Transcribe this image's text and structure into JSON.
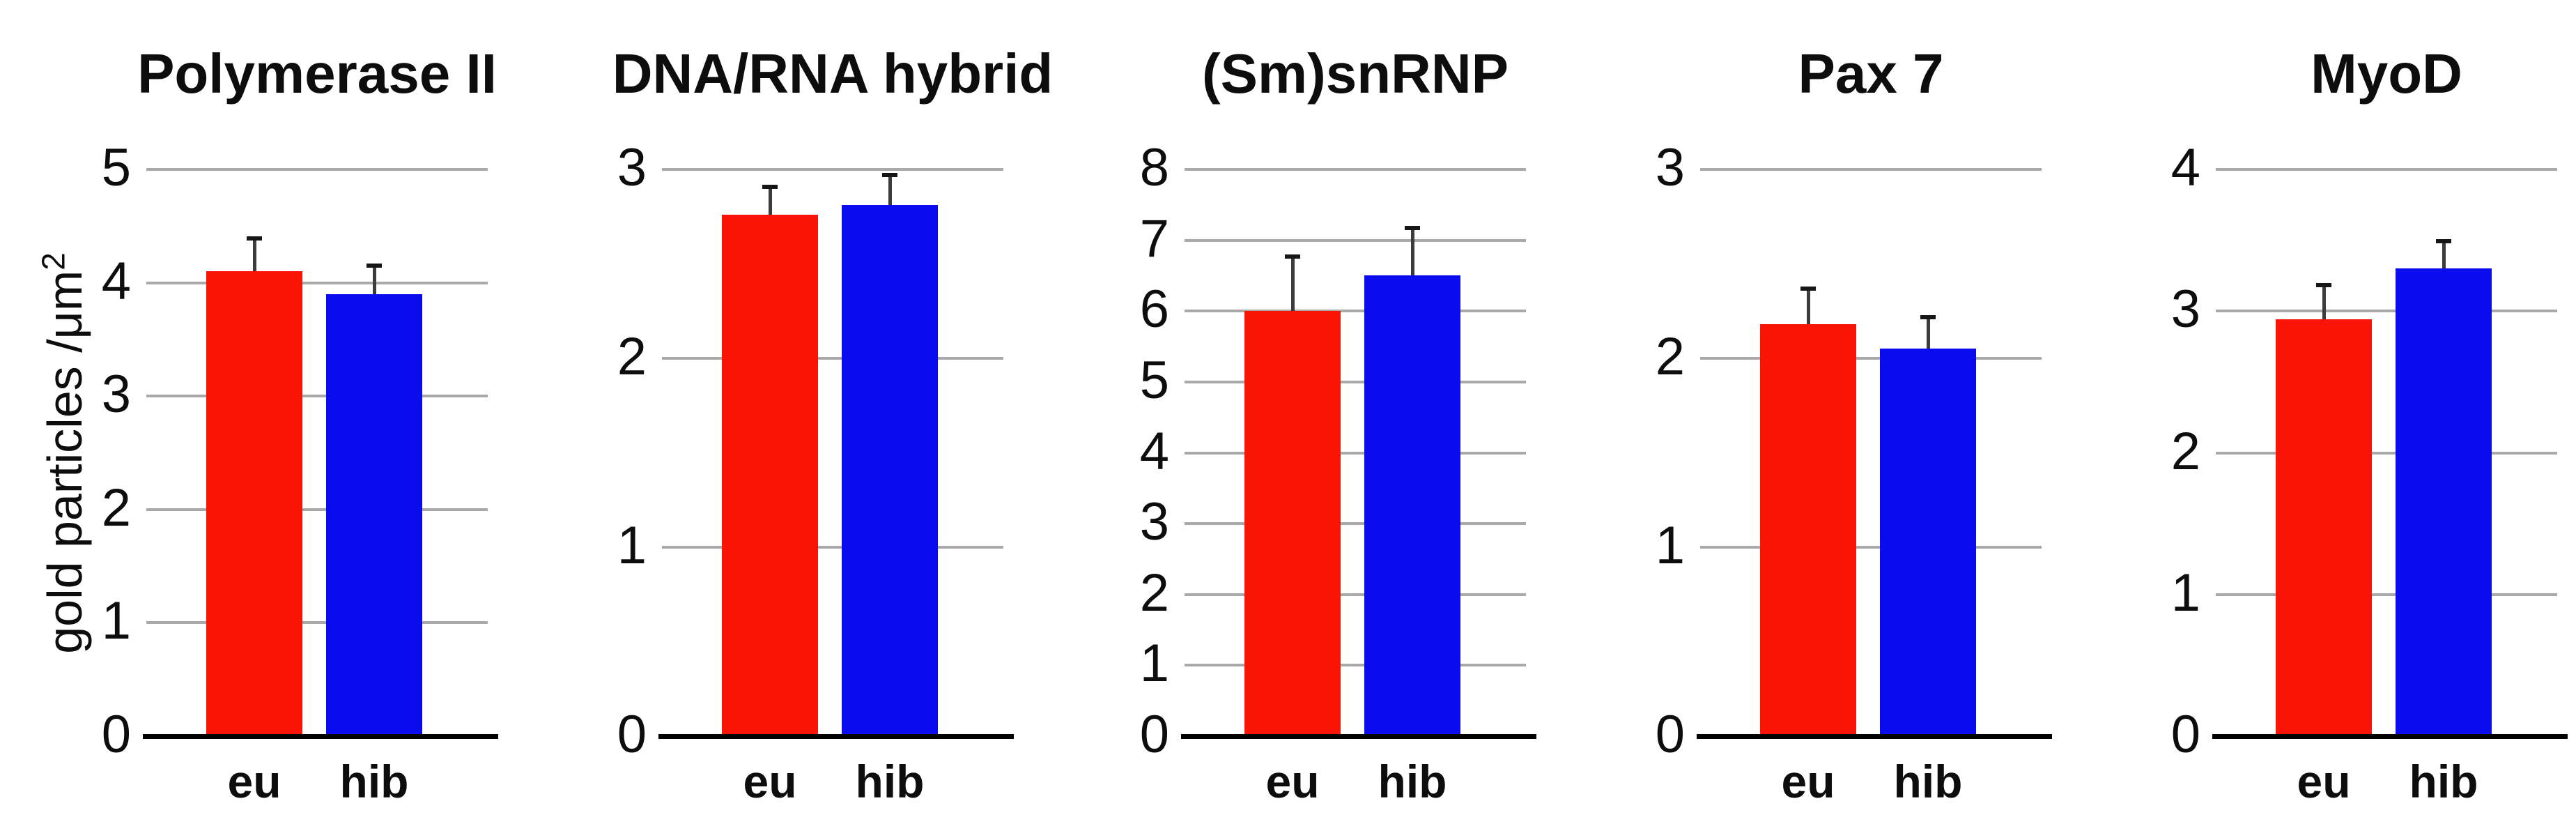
{
  "figure": {
    "background": "#ffffff",
    "y_axis_label": {
      "text": "gold particles /μm",
      "superscript": "2"
    },
    "bar_series": [
      "eu",
      "hib"
    ],
    "colors": {
      "eu_bar": "#fa1405",
      "hib_bar": "#0b0bf0",
      "gridline": "#a9a9a9",
      "axis": "#000000",
      "error_stem": "#3c3c3c",
      "error_cap": "#161616"
    }
  },
  "chart_data": [
    {
      "type": "bar",
      "title": "Polymerase II",
      "categories": [
        "eu",
        "hib"
      ],
      "values": [
        4.1,
        3.9
      ],
      "errors_plus": [
        0.31,
        0.27
      ],
      "ylim": [
        0,
        5
      ],
      "yticks": [
        0,
        1,
        2,
        3,
        4,
        5
      ],
      "grid": true,
      "ylabel": "gold particles /μm2",
      "legend": "none"
    },
    {
      "type": "bar",
      "title": "DNA/RNA hybrid",
      "categories": [
        "eu",
        "hib"
      ],
      "values": [
        2.76,
        2.81
      ],
      "errors_plus": [
        0.16,
        0.17
      ],
      "ylim": [
        0,
        3
      ],
      "yticks": [
        0,
        1,
        2,
        3
      ],
      "grid": true,
      "ylabel": "",
      "legend": "none"
    },
    {
      "type": "bar",
      "title": "(Sm)snRNP",
      "categories": [
        "eu",
        "hib"
      ],
      "values": [
        6.0,
        6.5
      ],
      "errors_plus": [
        0.8,
        0.7
      ],
      "ylim": [
        0,
        8
      ],
      "yticks": [
        0,
        1,
        2,
        3,
        4,
        5,
        6,
        7,
        8
      ],
      "grid": true,
      "ylabel": "",
      "legend": "none"
    },
    {
      "type": "bar",
      "title": "Pax 7",
      "categories": [
        "eu",
        "hib"
      ],
      "values": [
        2.18,
        2.05
      ],
      "errors_plus": [
        0.2,
        0.18
      ],
      "ylim": [
        0,
        3
      ],
      "yticks": [
        0,
        1,
        2,
        3
      ],
      "grid": true,
      "ylabel": "",
      "legend": "none"
    },
    {
      "type": "bar",
      "title": "MyoD",
      "categories": [
        "eu",
        "hib"
      ],
      "values": [
        2.94,
        3.3
      ],
      "errors_plus": [
        0.26,
        0.21
      ],
      "ylim": [
        0,
        4
      ],
      "yticks": [
        0,
        1,
        2,
        3,
        4
      ],
      "grid": true,
      "ylabel": "",
      "legend": "none"
    }
  ]
}
